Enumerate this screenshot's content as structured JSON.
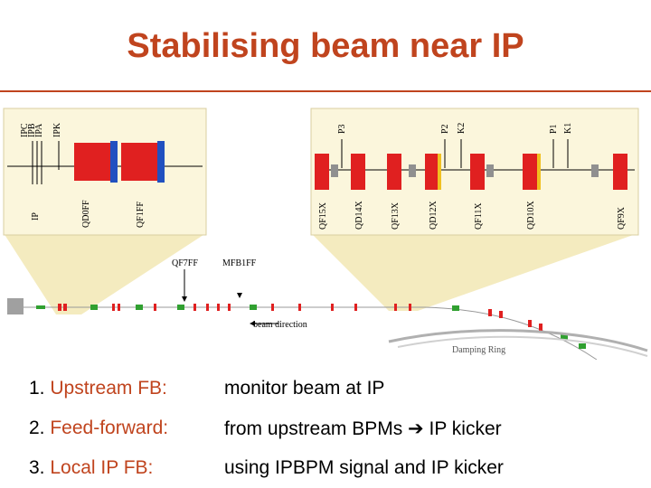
{
  "title": "Stabilising beam near IP",
  "diagram": {
    "left_labels": [
      "IPC",
      "IPB",
      "IPA",
      "IPK",
      "IP",
      "QD0FF",
      "QF1FF"
    ],
    "right_labels": [
      "P3",
      "P2",
      "K2",
      "P1",
      "K1",
      "QF15X",
      "QD14X",
      "QF13X",
      "QD12X",
      "QF11X",
      "QD10X",
      "QF9X"
    ],
    "beamline_labels": [
      "QF7FF",
      "MFB1FF"
    ],
    "beam_direction": "beam direction",
    "damping_ring": "Damping Ring",
    "colors": {
      "magnet": "#e02020",
      "bpm": "#909090",
      "kicker": "#f0c020",
      "zoom_fill": "#f3e9b8",
      "sextupole": "#2050c0"
    }
  },
  "items": [
    {
      "num": "1.",
      "label": "Upstream FB:",
      "desc": "monitor  beam at IP"
    },
    {
      "num": "2.",
      "label": "Feed-forward:",
      "desc": "from upstream BPMs ➔ IP kicker"
    },
    {
      "num": "3.",
      "label": "Local IP FB:",
      "desc": "using IPBPM signal and IP kicker"
    }
  ]
}
